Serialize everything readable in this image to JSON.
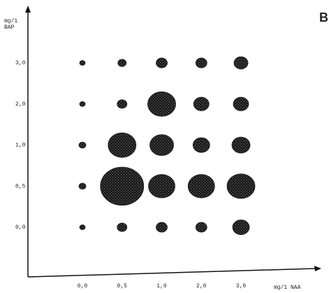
{
  "chart_data": {
    "type": "bubble-grid",
    "panel_label": "B",
    "x_label": "mg/1 NAA",
    "y_label": [
      "mg/1",
      "BAP"
    ],
    "x_categories": [
      "0,0",
      "0,5",
      "1,0",
      "2,0",
      "3,0"
    ],
    "y_categories": [
      "0,0",
      "0,5",
      "1,0",
      "2,0",
      "3,0"
    ],
    "sizes": [
      [
        8,
        14,
        16,
        16,
        24
      ],
      [
        10,
        62,
        38,
        38,
        40
      ],
      [
        10,
        40,
        34,
        24,
        26
      ],
      [
        8,
        14,
        40,
        22,
        22
      ],
      [
        8,
        12,
        16,
        16,
        20
      ]
    ],
    "color": "#1e1e1e"
  }
}
